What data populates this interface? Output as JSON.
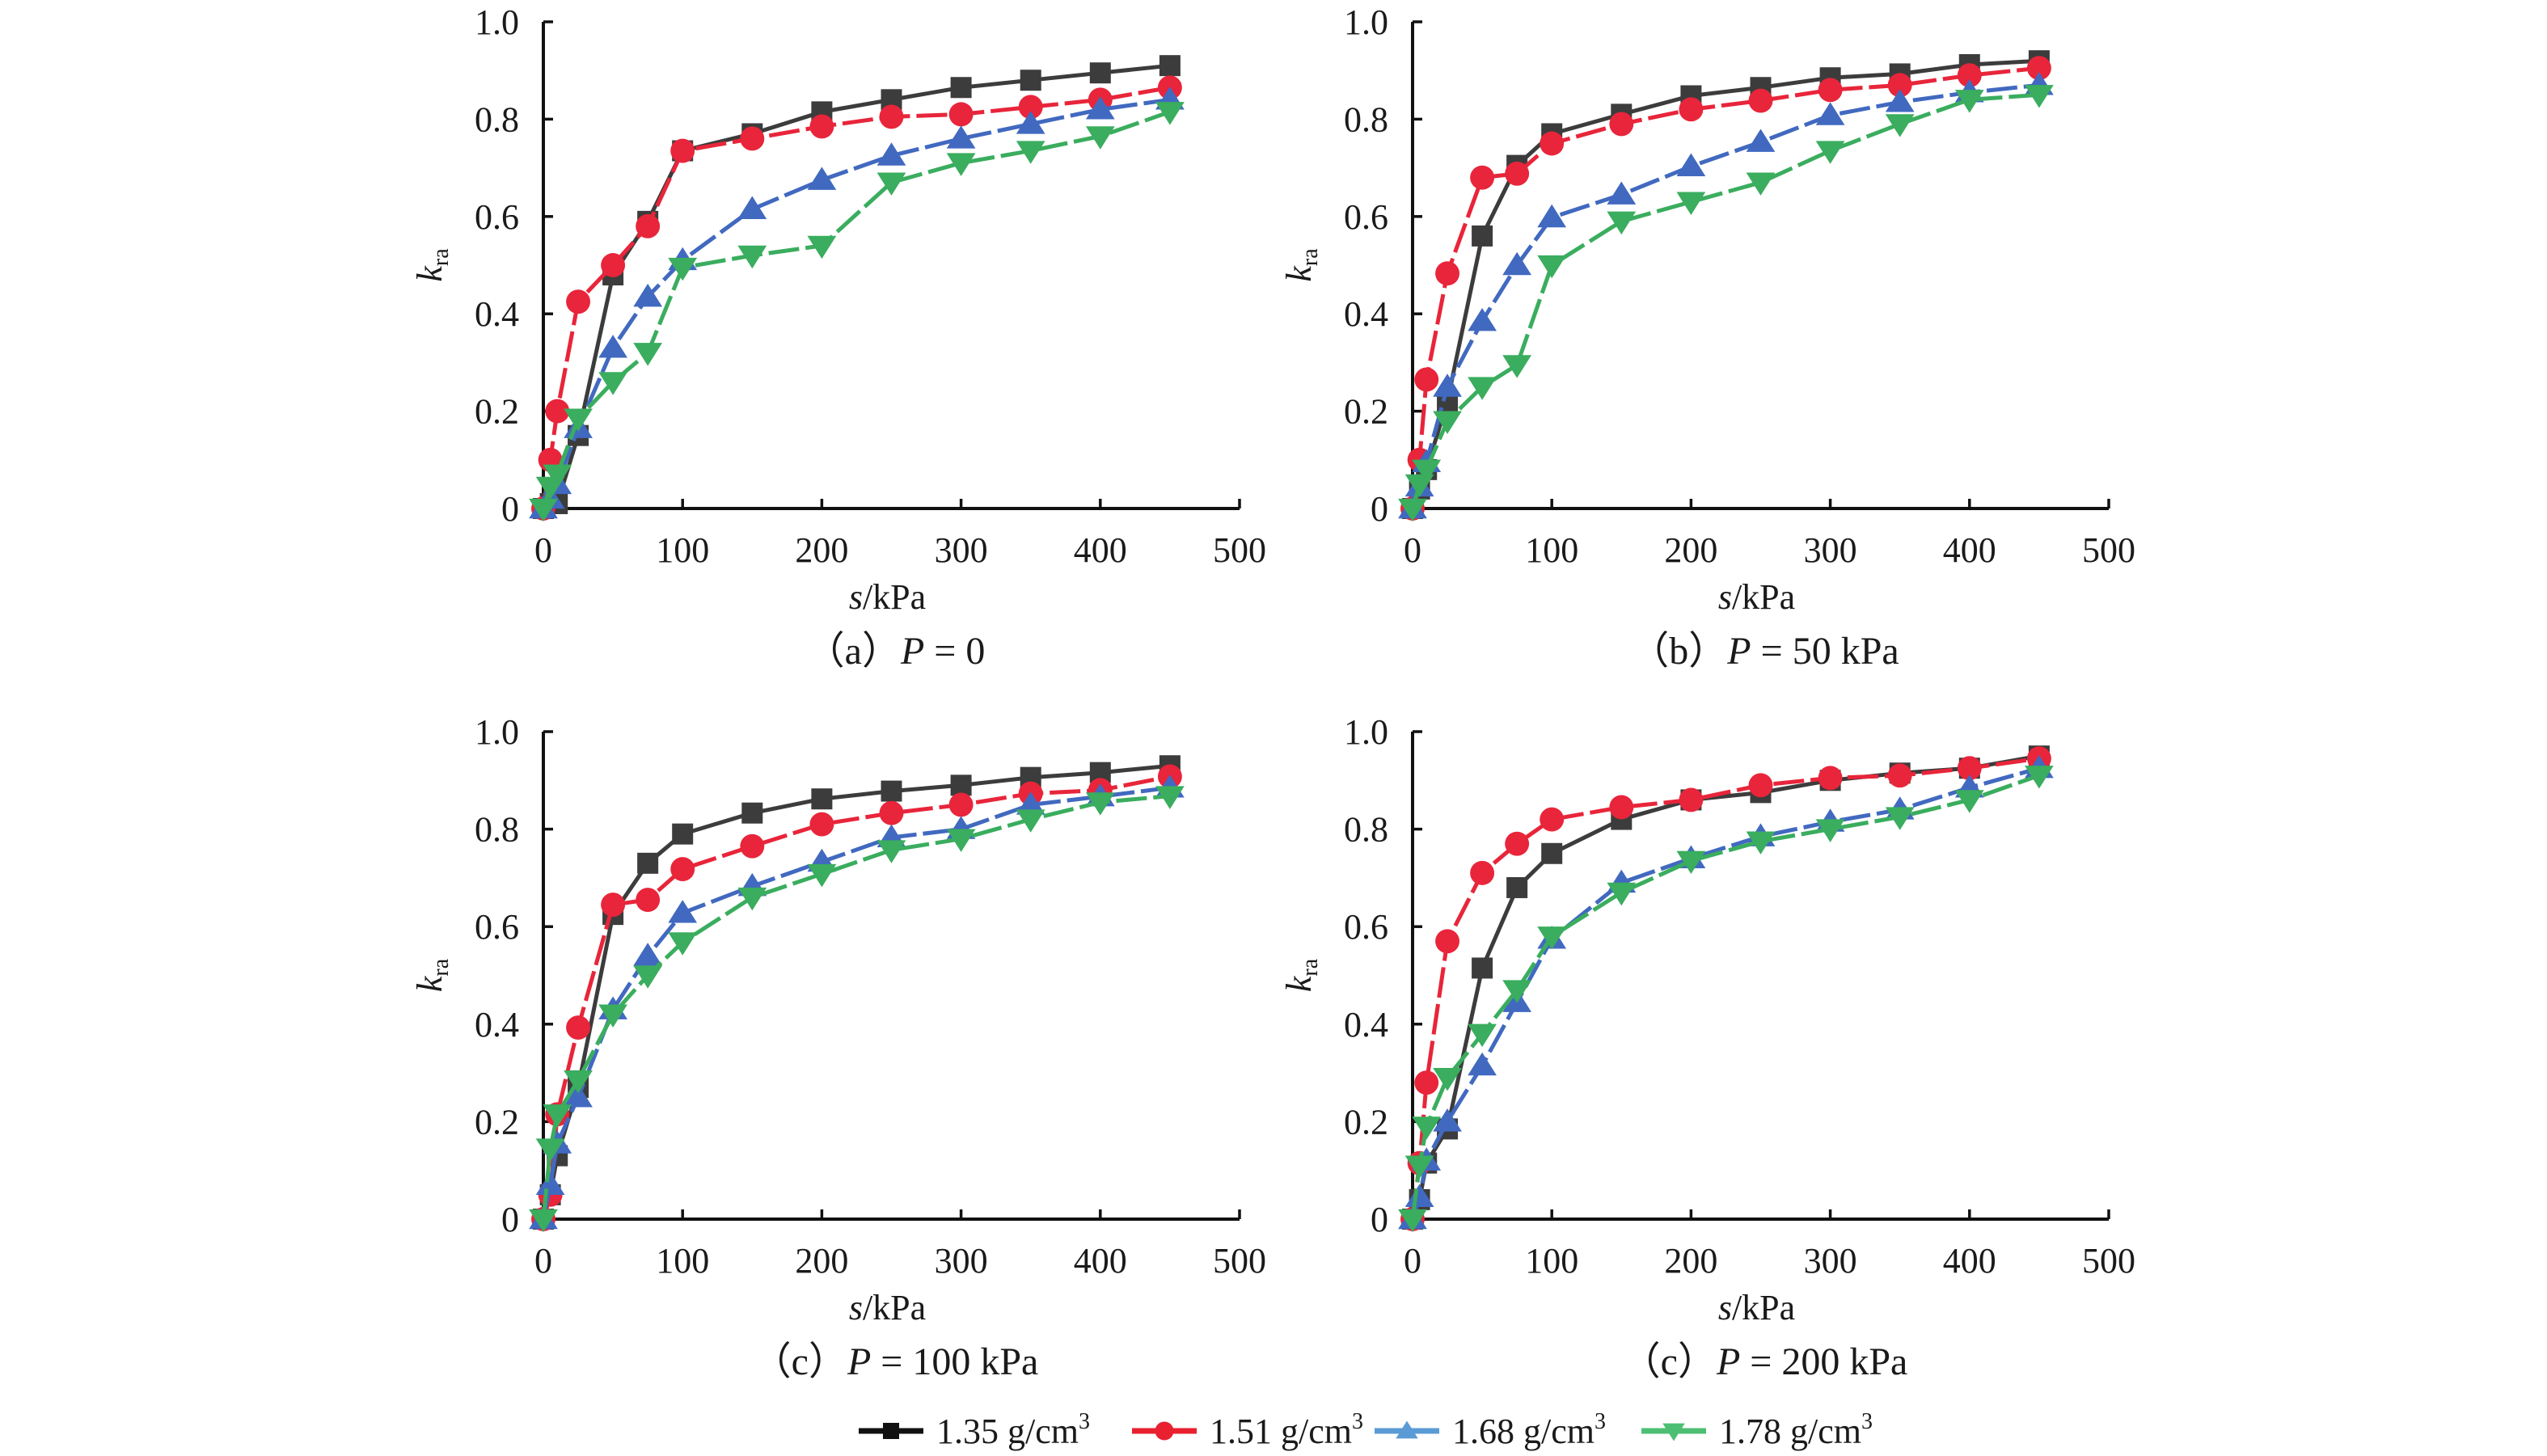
{
  "figure": {
    "legend": [
      {
        "label": "1.35 g/cm",
        "sup": "3",
        "marker": "square",
        "color": "#3c3c3c",
        "legend_color": "#111111"
      },
      {
        "label": "1.51 g/cm",
        "sup": "3",
        "marker": "circle",
        "color": "#e8253a",
        "legend_color": "#e8202f"
      },
      {
        "label": "1.68 g/cm",
        "sup": "3",
        "marker": "triangle-up",
        "color": "#4169c0",
        "legend_color": "#5b9bd5"
      },
      {
        "label": "1.78 g/cm",
        "sup": "3",
        "marker": "triangle-down",
        "color": "#3aad5e",
        "legend_color": "#4dbf73"
      }
    ],
    "legend_placement": "bottom-center"
  },
  "chart_data": [
    {
      "type": "line",
      "title": "（a）P = 0",
      "caption_prefix": "（a）",
      "caption_var": "P",
      "caption_rest": " = 0",
      "xlabel_var": "s",
      "xlabel_unit": "/kPa",
      "ylabel_var": "k",
      "ylabel_sub": "ra",
      "xlim": [
        0,
        500
      ],
      "ylim": [
        0,
        1.0
      ],
      "xticks": [
        "0",
        "100",
        "200",
        "300",
        "400",
        "500"
      ],
      "yticks": [
        "0",
        "0.2",
        "0.4",
        "0.6",
        "0.8",
        "1.0"
      ],
      "grid": false,
      "x": [
        0,
        5,
        10,
        25,
        50,
        75,
        100,
        150,
        200,
        250,
        300,
        350,
        400,
        450
      ],
      "series": [
        {
          "name": "1.35 g/cm3",
          "values": [
            0,
            0.01,
            0.01,
            0.15,
            0.48,
            0.59,
            0.735,
            0.77,
            0.815,
            0.84,
            0.865,
            0.88,
            0.895,
            0.91
          ]
        },
        {
          "name": "1.51 g/cm3",
          "values": [
            0,
            0.1,
            0.2,
            0.425,
            0.5,
            0.58,
            0.735,
            0.76,
            0.785,
            0.805,
            0.81,
            0.825,
            0.84,
            0.865
          ]
        },
        {
          "name": "1.68 g/cm3",
          "values": [
            0,
            0.02,
            0.05,
            0.165,
            0.33,
            0.435,
            0.51,
            0.615,
            0.675,
            0.725,
            0.76,
            0.79,
            0.82,
            0.84
          ]
        },
        {
          "name": "1.78 g/cm3",
          "values": [
            0,
            0.045,
            0.07,
            0.185,
            0.26,
            0.32,
            0.495,
            0.52,
            0.54,
            0.67,
            0.71,
            0.735,
            0.765,
            0.815
          ]
        }
      ]
    },
    {
      "type": "line",
      "title": "（b）P = 50 kPa",
      "caption_prefix": "（b）",
      "caption_var": "P",
      "caption_rest": " = 50 kPa",
      "xlabel_var": "s",
      "xlabel_unit": "/kPa",
      "ylabel_var": "k",
      "ylabel_sub": "ra",
      "xlim": [
        0,
        500
      ],
      "ylim": [
        0,
        1.0
      ],
      "xticks": [
        "0",
        "100",
        "200",
        "300",
        "400",
        "500"
      ],
      "yticks": [
        "0",
        "0.2",
        "0.4",
        "0.6",
        "0.8",
        "1.0"
      ],
      "grid": false,
      "x": [
        0,
        5,
        10,
        25,
        50,
        75,
        100,
        150,
        200,
        250,
        300,
        350,
        400,
        450
      ],
      "series": [
        {
          "name": "1.35 g/cm3",
          "values": [
            0,
            0.04,
            0.08,
            0.22,
            0.56,
            0.705,
            0.77,
            0.81,
            0.848,
            0.865,
            0.885,
            0.893,
            0.912,
            0.92
          ]
        },
        {
          "name": "1.51 g/cm3",
          "values": [
            0,
            0.1,
            0.265,
            0.483,
            0.68,
            0.688,
            0.75,
            0.79,
            0.82,
            0.838,
            0.86,
            0.87,
            0.89,
            0.905
          ]
        },
        {
          "name": "1.68 g/cm3",
          "values": [
            0,
            0.045,
            0.095,
            0.25,
            0.385,
            0.5,
            0.598,
            0.645,
            0.703,
            0.753,
            0.808,
            0.835,
            0.855,
            0.87
          ]
        },
        {
          "name": "1.78 g/cm3",
          "values": [
            0,
            0.05,
            0.08,
            0.18,
            0.25,
            0.295,
            0.5,
            0.59,
            0.63,
            0.67,
            0.735,
            0.79,
            0.84,
            0.85
          ]
        }
      ]
    },
    {
      "type": "line",
      "title": "（c）P = 100 kPa",
      "caption_prefix": "（c）",
      "caption_var": "P",
      "caption_rest": " = 100 kPa",
      "xlabel_var": "s",
      "xlabel_unit": "/kPa",
      "ylabel_var": "k",
      "ylabel_sub": "ra",
      "xlim": [
        0,
        500
      ],
      "ylim": [
        0,
        1.0
      ],
      "xticks": [
        "0",
        "100",
        "200",
        "300",
        "400",
        "500"
      ],
      "yticks": [
        "0",
        "0.2",
        "0.4",
        "0.6",
        "0.8",
        "1.0"
      ],
      "grid": false,
      "x": [
        0,
        5,
        10,
        25,
        50,
        75,
        100,
        150,
        200,
        250,
        300,
        350,
        400,
        450
      ],
      "series": [
        {
          "name": "1.35 g/cm3",
          "values": [
            0,
            0.05,
            0.13,
            0.27,
            0.625,
            0.73,
            0.79,
            0.833,
            0.862,
            0.878,
            0.89,
            0.906,
            0.916,
            0.93
          ]
        },
        {
          "name": "1.51 g/cm3",
          "values": [
            0,
            0.05,
            0.215,
            0.393,
            0.645,
            0.655,
            0.718,
            0.765,
            0.81,
            0.833,
            0.85,
            0.873,
            0.88,
            0.908
          ]
        },
        {
          "name": "1.68 g/cm3",
          "values": [
            0,
            0.07,
            0.155,
            0.25,
            0.43,
            0.54,
            0.628,
            0.683,
            0.733,
            0.783,
            0.8,
            0.85,
            0.867,
            0.885
          ]
        },
        {
          "name": "1.78 g/cm3",
          "values": [
            0,
            0.145,
            0.215,
            0.285,
            0.42,
            0.5,
            0.568,
            0.66,
            0.708,
            0.757,
            0.78,
            0.82,
            0.855,
            0.868
          ]
        }
      ]
    },
    {
      "type": "line",
      "title": "（c）P = 200 kPa",
      "caption_prefix": "（c）",
      "caption_var": "P",
      "caption_rest": " = 200 kPa",
      "xlabel_var": "s",
      "xlabel_unit": "/kPa",
      "ylabel_var": "k",
      "ylabel_sub": "ra",
      "xlim": [
        0,
        500
      ],
      "ylim": [
        0,
        1.0
      ],
      "xticks": [
        "0",
        "100",
        "200",
        "300",
        "400",
        "500"
      ],
      "yticks": [
        "0",
        "0.2",
        "0.4",
        "0.6",
        "0.8",
        "1.0"
      ],
      "grid": false,
      "x": [
        0,
        5,
        10,
        25,
        50,
        75,
        100,
        150,
        200,
        250,
        300,
        350,
        400,
        450
      ],
      "series": [
        {
          "name": "1.35 g/cm3",
          "values": [
            0,
            0.04,
            0.115,
            0.185,
            0.515,
            0.68,
            0.75,
            0.82,
            0.86,
            0.875,
            0.9,
            0.915,
            0.925,
            0.95
          ]
        },
        {
          "name": "1.51 g/cm3",
          "values": [
            0,
            0.115,
            0.28,
            0.57,
            0.71,
            0.77,
            0.82,
            0.845,
            0.86,
            0.89,
            0.905,
            0.91,
            0.925,
            0.945
          ]
        },
        {
          "name": "1.68 g/cm3",
          "values": [
            0,
            0.045,
            0.12,
            0.2,
            0.315,
            0.445,
            0.575,
            0.69,
            0.74,
            0.785,
            0.815,
            0.84,
            0.885,
            0.925
          ]
        },
        {
          "name": "1.78 g/cm3",
          "values": [
            0,
            0.11,
            0.19,
            0.29,
            0.38,
            0.47,
            0.58,
            0.67,
            0.735,
            0.775,
            0.8,
            0.825,
            0.86,
            0.91
          ]
        }
      ]
    }
  ]
}
